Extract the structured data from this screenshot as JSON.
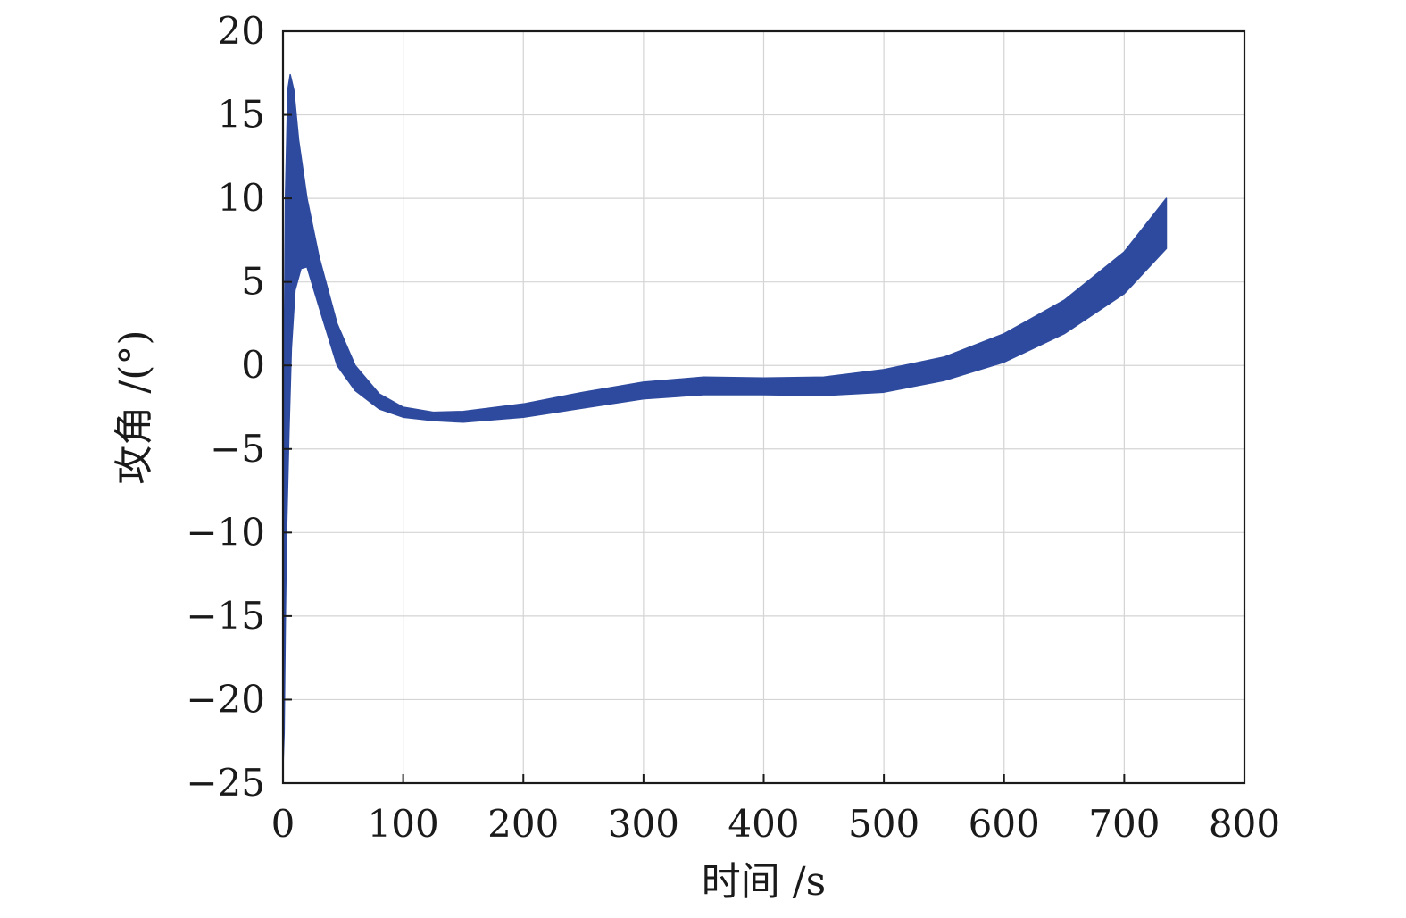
{
  "chart_data": {
    "type": "area",
    "title": "",
    "xlabel": "时间 /s",
    "ylabel": "攻角 /(°)",
    "xlim": [
      0,
      800
    ],
    "ylim": [
      -25,
      20
    ],
    "xticks": [
      0,
      100,
      200,
      300,
      400,
      500,
      600,
      700,
      800
    ],
    "yticks": [
      20,
      15,
      10,
      5,
      0,
      -5,
      -10,
      -15,
      -20,
      -25
    ],
    "yticklabels": [
      "20",
      "15",
      "10",
      "5",
      "0",
      "−5",
      "−10",
      "−15",
      "−20",
      "−25"
    ],
    "grid": true,
    "series_color": "#2e4a9e",
    "series": [
      {
        "upper": [
          [
            0,
            -22
          ],
          [
            1,
            0
          ],
          [
            2,
            10
          ],
          [
            4,
            16.5
          ],
          [
            6,
            17.4
          ],
          [
            9,
            16.5
          ],
          [
            13,
            13.5
          ],
          [
            20,
            10
          ],
          [
            30,
            6.5
          ],
          [
            45,
            2.5
          ],
          [
            60,
            0
          ],
          [
            80,
            -1.7
          ],
          [
            100,
            -2.5
          ],
          [
            125,
            -2.8
          ],
          [
            150,
            -2.75
          ],
          [
            200,
            -2.3
          ],
          [
            250,
            -1.6
          ],
          [
            300,
            -1.0
          ],
          [
            350,
            -0.7
          ],
          [
            400,
            -0.75
          ],
          [
            450,
            -0.7
          ],
          [
            500,
            -0.25
          ],
          [
            550,
            0.5
          ],
          [
            600,
            1.9
          ],
          [
            650,
            3.9
          ],
          [
            700,
            6.8
          ],
          [
            735,
            10.0
          ]
        ],
        "lower": [
          [
            0,
            -24
          ],
          [
            1,
            -22
          ],
          [
            2,
            -15
          ],
          [
            3,
            -10
          ],
          [
            5,
            -4
          ],
          [
            7,
            1
          ],
          [
            10,
            4.5
          ],
          [
            15,
            5.8
          ],
          [
            20,
            5.9
          ],
          [
            30,
            3.5
          ],
          [
            45,
            0
          ],
          [
            60,
            -1.5
          ],
          [
            80,
            -2.6
          ],
          [
            100,
            -3.1
          ],
          [
            125,
            -3.3
          ],
          [
            150,
            -3.4
          ],
          [
            200,
            -3.1
          ],
          [
            250,
            -2.55
          ],
          [
            300,
            -2.0
          ],
          [
            350,
            -1.75
          ],
          [
            400,
            -1.75
          ],
          [
            450,
            -1.8
          ],
          [
            500,
            -1.6
          ],
          [
            550,
            -0.9
          ],
          [
            600,
            0.2
          ],
          [
            650,
            1.9
          ],
          [
            700,
            4.3
          ],
          [
            735,
            7.0
          ]
        ]
      }
    ]
  }
}
